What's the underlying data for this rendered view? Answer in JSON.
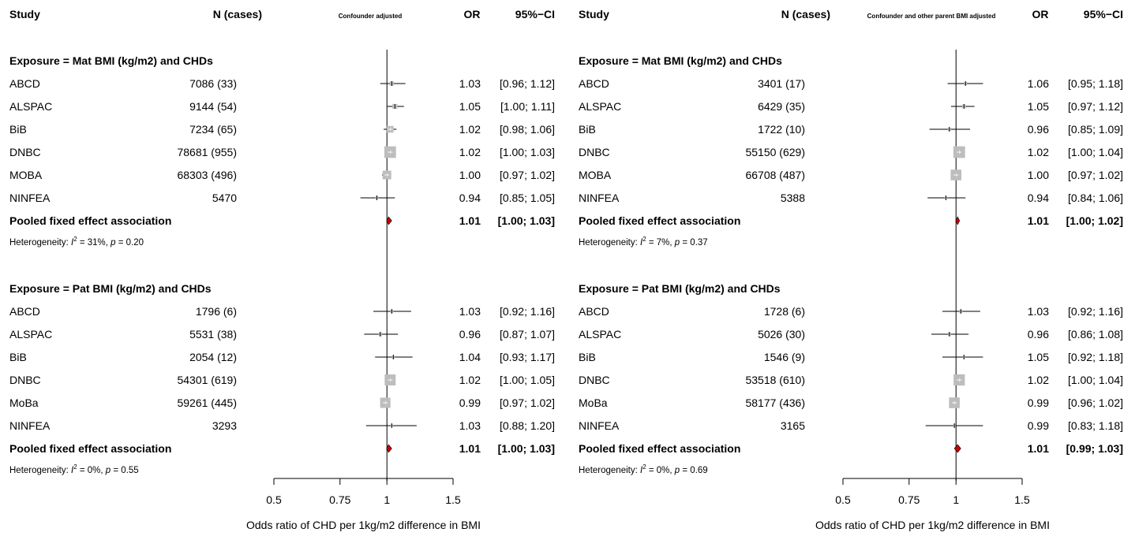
{
  "chart_data": [
    {
      "type": "forest",
      "columns": {
        "study": "Study",
        "n": "N (cases)",
        "model": "Confounder adjusted",
        "or": "OR",
        "ci": "95%−CI"
      },
      "xlabel": "Odds ratio of CHD per 1kg/m2 difference in BMI",
      "xscale": "log",
      "xlim": [
        0.5,
        1.5
      ],
      "xticks": [
        "0.5",
        "0.75",
        "1",
        "1.5"
      ],
      "groups": [
        {
          "title": "Exposure = Mat BMI (kg/m2) and CHDs",
          "studies": [
            {
              "name": "ABCD",
              "n": "7086 (33)",
              "or": 1.03,
              "lo": 0.96,
              "hi": 1.12,
              "or_text": "1.03",
              "ci_text": "[0.96; 1.12]",
              "weight": 0.06
            },
            {
              "name": "ALSPAC",
              "n": "9144 (54)",
              "or": 1.05,
              "lo": 1.0,
              "hi": 1.11,
              "or_text": "1.05",
              "ci_text": "[1.00; 1.11]",
              "weight": 0.08
            },
            {
              "name": "BiB",
              "n": "7234 (65)",
              "or": 1.02,
              "lo": 0.98,
              "hi": 1.06,
              "or_text": "1.02",
              "ci_text": "[0.98; 1.06]",
              "weight": 0.15
            },
            {
              "name": "DNBC",
              "n": "78681 (955)",
              "or": 1.02,
              "lo": 1.0,
              "hi": 1.03,
              "or_text": "1.02",
              "ci_text": "[1.00; 1.03]",
              "weight": 0.45
            },
            {
              "name": "MOBA",
              "n": "68303 (496)",
              "or": 1.0,
              "lo": 0.97,
              "hi": 1.02,
              "or_text": "1.00",
              "ci_text": "[0.97; 1.02]",
              "weight": 0.25
            },
            {
              "name": "NINFEA",
              "n": "5470",
              "or": 0.94,
              "lo": 0.85,
              "hi": 1.05,
              "or_text": "0.94",
              "ci_text": "[0.85; 1.05]",
              "weight": 0.03
            }
          ],
          "pooled": {
            "label": "Pooled fixed effect association",
            "or": 1.01,
            "lo": 1.0,
            "hi": 1.03,
            "or_text": "1.01",
            "ci_text": "[1.00; 1.03]"
          },
          "het_prefix": "Heterogeneity: ",
          "het_i2": "I",
          "het_i2_sup": "2",
          "het_i2_val": " = 31%, ",
          "het_p": "p",
          "het_p_val": " = 0.20"
        },
        {
          "title": "Exposure = Pat BMI (kg/m2) and CHDs",
          "studies": [
            {
              "name": "ABCD",
              "n": "1796 (6)",
              "or": 1.03,
              "lo": 0.92,
              "hi": 1.16,
              "or_text": "1.03",
              "ci_text": "[0.92; 1.16]",
              "weight": 0.03
            },
            {
              "name": "ALSPAC",
              "n": "5531 (38)",
              "or": 0.96,
              "lo": 0.87,
              "hi": 1.07,
              "or_text": "0.96",
              "ci_text": "[0.87; 1.07]",
              "weight": 0.04
            },
            {
              "name": "BiB",
              "n": "2054 (12)",
              "or": 1.04,
              "lo": 0.93,
              "hi": 1.17,
              "or_text": "1.04",
              "ci_text": "[0.93; 1.17]",
              "weight": 0.03
            },
            {
              "name": "DNBC",
              "n": "54301 (619)",
              "or": 1.02,
              "lo": 1.0,
              "hi": 1.05,
              "or_text": "1.02",
              "ci_text": "[1.00; 1.05]",
              "weight": 0.4
            },
            {
              "name": "MoBa",
              "n": "59261 (445)",
              "or": 0.99,
              "lo": 0.97,
              "hi": 1.02,
              "or_text": "0.99",
              "ci_text": "[0.97; 1.02]",
              "weight": 0.35
            },
            {
              "name": "NINFEA",
              "n": "3293",
              "or": 1.03,
              "lo": 0.88,
              "hi": 1.2,
              "or_text": "1.03",
              "ci_text": "[0.88; 1.20]",
              "weight": 0.02
            }
          ],
          "pooled": {
            "label": "Pooled fixed effect association",
            "or": 1.01,
            "lo": 1.0,
            "hi": 1.03,
            "or_text": "1.01",
            "ci_text": "[1.00; 1.03]"
          },
          "het_prefix": "Heterogeneity: ",
          "het_i2": "I",
          "het_i2_sup": "2",
          "het_i2_val": " = 0%, ",
          "het_p": "p",
          "het_p_val": " = 0.55"
        }
      ]
    },
    {
      "type": "forest",
      "columns": {
        "study": "Study",
        "n": "N (cases)",
        "model": "Confounder and other parent BMI adjusted",
        "or": "OR",
        "ci": "95%−CI"
      },
      "xlabel": "Odds ratio of CHD per 1kg/m2 difference in BMI",
      "xscale": "log",
      "xlim": [
        0.5,
        1.5
      ],
      "xticks": [
        "0.5",
        "0.75",
        "1",
        "1.5"
      ],
      "groups": [
        {
          "title": "Exposure = Mat BMI (kg/m2) and CHDs",
          "studies": [
            {
              "name": "ABCD",
              "n": "3401 (17)",
              "or": 1.06,
              "lo": 0.95,
              "hi": 1.18,
              "or_text": "1.06",
              "ci_text": "[0.95; 1.18]",
              "weight": 0.03
            },
            {
              "name": "ALSPAC",
              "n": "6429 (35)",
              "or": 1.05,
              "lo": 0.97,
              "hi": 1.12,
              "or_text": "1.05",
              "ci_text": "[0.97; 1.12]",
              "weight": 0.05
            },
            {
              "name": "BiB",
              "n": "1722 (10)",
              "or": 0.96,
              "lo": 0.85,
              "hi": 1.09,
              "or_text": "0.96",
              "ci_text": "[0.85; 1.09]",
              "weight": 0.03
            },
            {
              "name": "DNBC",
              "n": "55150 (629)",
              "or": 1.02,
              "lo": 1.0,
              "hi": 1.04,
              "or_text": "1.02",
              "ci_text": "[1.00; 1.04]",
              "weight": 0.45
            },
            {
              "name": "MOBA",
              "n": "66708 (487)",
              "or": 1.0,
              "lo": 0.97,
              "hi": 1.02,
              "or_text": "1.00",
              "ci_text": "[0.97; 1.02]",
              "weight": 0.38
            },
            {
              "name": "NINFEA",
              "n": "5388",
              "or": 0.94,
              "lo": 0.84,
              "hi": 1.06,
              "or_text": "0.94",
              "ci_text": "[0.84; 1.06]",
              "weight": 0.02
            }
          ],
          "pooled": {
            "label": "Pooled fixed effect association",
            "or": 1.01,
            "lo": 1.0,
            "hi": 1.02,
            "or_text": "1.01",
            "ci_text": "[1.00; 1.02]"
          },
          "het_prefix": "Heterogeneity: ",
          "het_i2": "I",
          "het_i2_sup": "2",
          "het_i2_val": " = 7%, ",
          "het_p": "p",
          "het_p_val": " = 0.37"
        },
        {
          "title": "Exposure = Pat BMI (kg/m2) and CHDs",
          "studies": [
            {
              "name": "ABCD",
              "n": "1728 (6)",
              "or": 1.03,
              "lo": 0.92,
              "hi": 1.16,
              "or_text": "1.03",
              "ci_text": "[0.92; 1.16]",
              "weight": 0.03
            },
            {
              "name": "ALSPAC",
              "n": "5026 (30)",
              "or": 0.96,
              "lo": 0.86,
              "hi": 1.08,
              "or_text": "0.96",
              "ci_text": "[0.86; 1.08]",
              "weight": 0.03
            },
            {
              "name": "BiB",
              "n": "1546 (9)",
              "or": 1.05,
              "lo": 0.92,
              "hi": 1.18,
              "or_text": "1.05",
              "ci_text": "[0.92; 1.18]",
              "weight": 0.02
            },
            {
              "name": "DNBC",
              "n": "53518 (610)",
              "or": 1.02,
              "lo": 1.0,
              "hi": 1.04,
              "or_text": "1.02",
              "ci_text": "[1.00; 1.04]",
              "weight": 0.42
            },
            {
              "name": "MoBa",
              "n": "58177 (436)",
              "or": 0.99,
              "lo": 0.96,
              "hi": 1.02,
              "or_text": "0.99",
              "ci_text": "[0.96; 1.02]",
              "weight": 0.38
            },
            {
              "name": "NINFEA",
              "n": "3165",
              "or": 0.99,
              "lo": 0.83,
              "hi": 1.18,
              "or_text": "0.99",
              "ci_text": "[0.83; 1.18]",
              "weight": 0.02
            }
          ],
          "pooled": {
            "label": "Pooled fixed effect association",
            "or": 1.01,
            "lo": 0.99,
            "hi": 1.03,
            "or_text": "1.01",
            "ci_text": "[0.99; 1.03]"
          },
          "het_prefix": "Heterogeneity: ",
          "het_i2": "I",
          "het_i2_sup": "2",
          "het_i2_val": " = 0%, ",
          "het_p": "p",
          "het_p_val": " = 0.69"
        }
      ]
    }
  ],
  "colors": {
    "pooled_diamond": "#cc0000",
    "study_square": "#bdbdbd",
    "ci_line": "#000000"
  }
}
